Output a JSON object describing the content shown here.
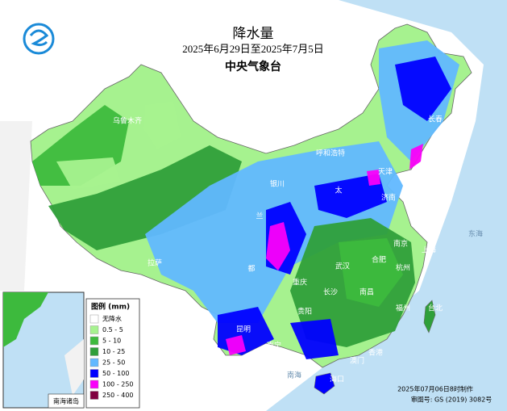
{
  "header": {
    "title": "降水量",
    "date_range": "2025年6月29日至2025年7月5日",
    "agency": "中央气象台"
  },
  "legend": {
    "title": "图例 (mm)",
    "items": [
      {
        "label": "无降水",
        "color": "#ffffff"
      },
      {
        "label": "0.5 - 5",
        "color": "#a6f28f"
      },
      {
        "label": "5 - 10",
        "color": "#3dba3d"
      },
      {
        "label": "10 - 25",
        "color": "#2f9f3a"
      },
      {
        "label": "25 - 50",
        "color": "#61b8ff"
      },
      {
        "label": "50 - 100",
        "color": "#0000ff"
      },
      {
        "label": "100 - 250",
        "color": "#fa00fa"
      },
      {
        "label": "250 - 400",
        "color": "#800040"
      }
    ]
  },
  "places": [
    "乌鲁木齐",
    "呼和浩特",
    "银川",
    "兰",
    "拉萨",
    "都",
    "重庆",
    "贵阳",
    "昆明",
    "南宁",
    "海口",
    "香港",
    "澳门",
    "福州",
    "台北",
    "南昌",
    "长沙",
    "武汉",
    "合肥",
    "南京",
    "上海",
    "杭州",
    "天津",
    "济南",
    "长春",
    "太",
    "东海",
    "南海"
  ],
  "inset": {
    "label": "南海诸岛"
  },
  "footer": {
    "made": "2025年07月06日8时制作",
    "approval": "审图号: GS (2019) 3082号"
  }
}
